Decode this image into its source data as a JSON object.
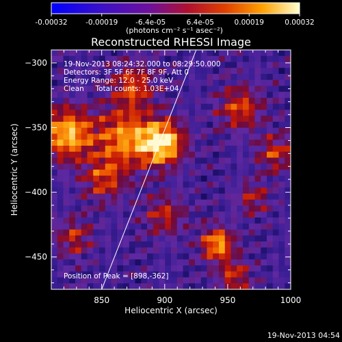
{
  "colorbar": {
    "ticks": [
      "-0.00032",
      "-0.00019",
      "-6.4e-05",
      "6.4e-05",
      "0.00019",
      "0.00032"
    ],
    "units": "(photons cm⁻² s⁻¹ asec⁻²)",
    "range": [
      -0.00032,
      0.00032
    ]
  },
  "footer_timestamp": "19-Nov-2013 04:54",
  "chart_data": {
    "type": "heatmap",
    "title": "Reconstructed RHESSI Image",
    "xlabel": "Heliocentric X (arcsec)",
    "ylabel": "Heliocentric Y (arcsec)",
    "xlim": [
      810,
      1000
    ],
    "ylim": [
      -475,
      -290
    ],
    "x_ticks": [
      850,
      900,
      950,
      1000
    ],
    "y_ticks": [
      -300,
      -350,
      -400,
      -450
    ],
    "x_tick_labels": [
      "850",
      "900",
      "950",
      "1000"
    ],
    "y_tick_labels": [
      "−300",
      "−350",
      "−400",
      "−450"
    ],
    "annotations": [
      "19-Nov-2013 08:24:32.000 to 08:29:50.000",
      "Detectors: 3F 5F 6F 7F 8F 9F, Att 0",
      "Energy Range: 12.0 - 25.0 keV",
      "Clean     Total counts: 1.03E+04"
    ],
    "peak_label": "Position of Peak = [898,-362]",
    "peak": [
      898,
      -362
    ],
    "limb_line": [
      [
        850,
        -475
      ],
      [
        925,
        -290
      ]
    ],
    "sources": [
      {
        "x": 898,
        "y": -362,
        "amp": 1.0,
        "sigma": 12
      },
      {
        "x": 823,
        "y": -355,
        "amp": 0.85,
        "sigma": 14
      },
      {
        "x": 868,
        "y": -358,
        "amp": 0.7,
        "sigma": 16
      },
      {
        "x": 875,
        "y": -318,
        "amp": 0.55,
        "sigma": 12
      },
      {
        "x": 852,
        "y": -390,
        "amp": 0.5,
        "sigma": 12
      },
      {
        "x": 900,
        "y": -418,
        "amp": 0.45,
        "sigma": 11
      },
      {
        "x": 960,
        "y": -335,
        "amp": 0.55,
        "sigma": 12
      },
      {
        "x": 942,
        "y": -440,
        "amp": 0.8,
        "sigma": 9
      },
      {
        "x": 955,
        "y": -465,
        "amp": 0.5,
        "sigma": 9
      },
      {
        "x": 988,
        "y": -370,
        "amp": 0.5,
        "sigma": 10
      },
      {
        "x": 970,
        "y": -405,
        "amp": 0.4,
        "sigma": 9
      },
      {
        "x": 828,
        "y": -435,
        "amp": 0.45,
        "sigma": 10
      }
    ]
  }
}
